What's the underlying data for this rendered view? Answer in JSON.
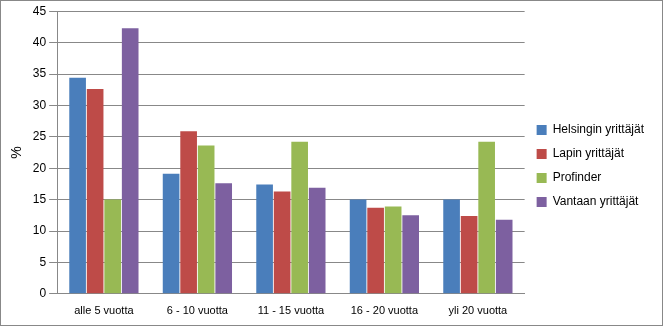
{
  "chart_data": {
    "type": "bar",
    "y_label": "%",
    "categories": [
      "alle 5 vuotta",
      "6 - 10 vuotta",
      "11 - 15 vuotta",
      "16 - 20 vuotta",
      "yli 20 vuotta"
    ],
    "series": [
      {
        "name": "Helsingin yrittäjät",
        "color": "#4a7ebb",
        "values": [
          34.4,
          19.1,
          17.4,
          15.0,
          15.0
        ]
      },
      {
        "name": "Lapin yrittäjät",
        "color": "#be4b48",
        "values": [
          32.6,
          25.9,
          16.3,
          13.7,
          12.4
        ]
      },
      {
        "name": "Profinder",
        "color": "#98b954",
        "values": [
          15.0,
          23.6,
          24.2,
          13.9,
          24.2
        ]
      },
      {
        "name": "Vantaan yrittäjät",
        "color": "#7d60a0",
        "values": [
          42.3,
          17.6,
          16.9,
          12.5,
          11.8
        ]
      }
    ],
    "ylim": [
      0,
      45
    ],
    "yticks": [
      0,
      5,
      10,
      15,
      20,
      25,
      30,
      35,
      40,
      45
    ],
    "grid": true,
    "legend": "right"
  }
}
